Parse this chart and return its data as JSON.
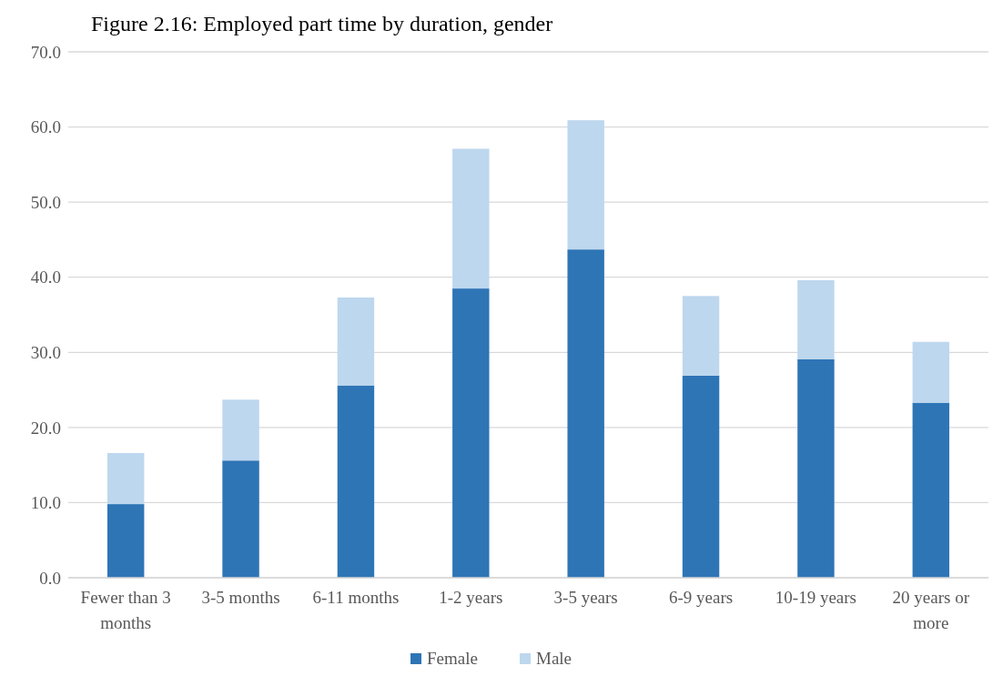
{
  "chart_data": {
    "type": "bar",
    "title": "Figure 2.16: Employed part time by duration, gender",
    "categories": [
      "Fewer than 3 months",
      "3-5 months",
      "6-11 months",
      "1-2 years",
      "3-5 years",
      "6-9 years",
      "10-19 years",
      "20 years or more"
    ],
    "series": [
      {
        "name": "Female",
        "color": "#2e75b6",
        "values": [
          9.8,
          15.6,
          25.6,
          38.5,
          43.7,
          26.9,
          29.1,
          23.3
        ]
      },
      {
        "name": "Male",
        "color": "#bdd7ee",
        "values": [
          6.8,
          8.1,
          11.7,
          18.6,
          17.2,
          10.6,
          10.5,
          8.1
        ]
      }
    ],
    "stacked": true,
    "ylim": [
      0,
      70
    ],
    "yticks": [
      {
        "value": 0,
        "label": "0.0"
      },
      {
        "value": 10,
        "label": "10.0"
      },
      {
        "value": 20,
        "label": "20.0"
      },
      {
        "value": 30,
        "label": "30.0"
      },
      {
        "value": 40,
        "label": "40.0"
      },
      {
        "value": 50,
        "label": "50.0"
      },
      {
        "value": 60,
        "label": "60.0"
      },
      {
        "value": 70,
        "label": "70.0"
      }
    ],
    "grid": "y",
    "legend": "bottom"
  }
}
